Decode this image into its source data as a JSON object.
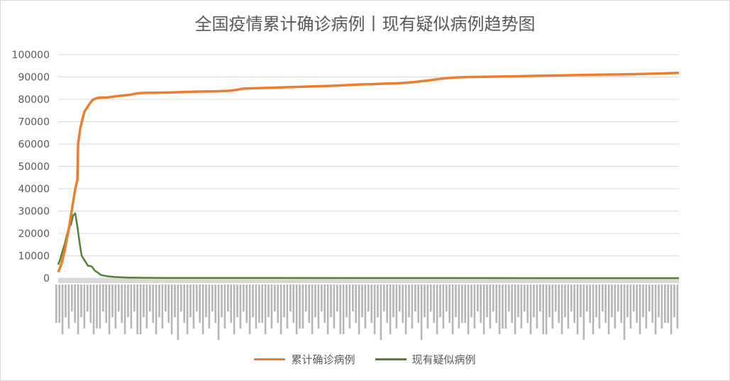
{
  "chart_data": {
    "type": "line",
    "title": "全国疫情累计确诊病例丨现有疑似病例趋势图",
    "ylim": [
      0,
      100000
    ],
    "yticks": [
      0,
      10000,
      20000,
      30000,
      40000,
      50000,
      60000,
      70000,
      80000,
      90000,
      100000
    ],
    "grid": true,
    "legend_position": "bottom",
    "n_points": 300,
    "series": [
      {
        "name": "累计确诊病例",
        "color": "#ED7D31",
        "points": [
          [
            0,
            2700
          ],
          [
            3,
            5000
          ],
          [
            6,
            8000
          ],
          [
            9,
            12000
          ],
          [
            12,
            17000
          ],
          [
            15,
            22000
          ],
          [
            18,
            28000
          ],
          [
            21,
            34000
          ],
          [
            24,
            40000
          ],
          [
            27,
            44000
          ],
          [
            28,
            60000
          ],
          [
            31,
            67000
          ],
          [
            34,
            71000
          ],
          [
            37,
            74500
          ],
          [
            40,
            76000
          ],
          [
            43,
            77500
          ],
          [
            46,
            78800
          ],
          [
            49,
            79800
          ],
          [
            52,
            80300
          ],
          [
            55,
            80600
          ],
          [
            60,
            80800
          ],
          [
            70,
            80900
          ],
          [
            80,
            81300
          ],
          [
            90,
            81700
          ],
          [
            100,
            82000
          ],
          [
            110,
            82600
          ],
          [
            120,
            82900
          ],
          [
            140,
            83000
          ],
          [
            160,
            83100
          ],
          [
            180,
            83300
          ],
          [
            200,
            83500
          ],
          [
            220,
            83600
          ],
          [
            240,
            83800
          ],
          [
            250,
            84200
          ],
          [
            260,
            84800
          ],
          [
            280,
            85000
          ],
          [
            300,
            85200
          ],
          [
            320,
            85400
          ],
          [
            340,
            85600
          ],
          [
            360,
            85800
          ],
          [
            380,
            86000
          ],
          [
            400,
            86300
          ],
          [
            420,
            86600
          ],
          [
            440,
            86800
          ],
          [
            460,
            87000
          ],
          [
            480,
            87200
          ],
          [
            500,
            87700
          ],
          [
            520,
            88400
          ],
          [
            540,
            89300
          ],
          [
            560,
            89800
          ],
          [
            580,
            90000
          ],
          [
            600,
            90100
          ],
          [
            640,
            90300
          ],
          [
            680,
            90600
          ],
          [
            720,
            90800
          ],
          [
            760,
            91000
          ],
          [
            800,
            91200
          ],
          [
            840,
            91500
          ],
          [
            860,
            91700
          ],
          [
            873,
            91800
          ]
        ]
      },
      {
        "name": "现有疑似病例",
        "color": "#548235",
        "points": [
          [
            0,
            6000
          ],
          [
            3,
            8500
          ],
          [
            6,
            12000
          ],
          [
            9,
            15000
          ],
          [
            12,
            19000
          ],
          [
            15,
            22500
          ],
          [
            18,
            24000
          ],
          [
            21,
            28000
          ],
          [
            24,
            29000
          ],
          [
            27,
            23000
          ],
          [
            30,
            16000
          ],
          [
            33,
            10000
          ],
          [
            36,
            8500
          ],
          [
            39,
            7000
          ],
          [
            42,
            5500
          ],
          [
            45,
            5500
          ],
          [
            48,
            5000
          ],
          [
            51,
            3500
          ],
          [
            54,
            2800
          ],
          [
            57,
            2200
          ],
          [
            60,
            1400
          ],
          [
            63,
            1200
          ],
          [
            70,
            800
          ],
          [
            80,
            500
          ],
          [
            90,
            350
          ],
          [
            100,
            250
          ],
          [
            120,
            150
          ],
          [
            150,
            100
          ],
          [
            200,
            80
          ],
          [
            300,
            50
          ],
          [
            500,
            20
          ],
          [
            873,
            10
          ]
        ]
      }
    ]
  },
  "legend": [
    {
      "label": "累计确诊病例",
      "color": "#ED7D31"
    },
    {
      "label": "现有疑似病例",
      "color": "#548235"
    }
  ]
}
